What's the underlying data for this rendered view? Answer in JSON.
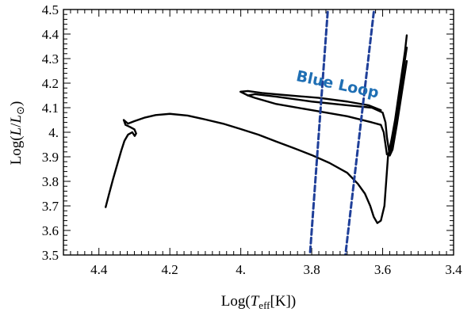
{
  "chart_data": {
    "type": "line",
    "xlim": [
      4.5,
      3.4
    ],
    "ylim": [
      3.5,
      4.5
    ],
    "x_ticks": [
      4.4,
      4.2,
      4.0,
      3.8,
      3.6,
      3.4
    ],
    "x_tick_labels": [
      "4.4",
      "4.2",
      "4.",
      "3.8",
      "3.6",
      "3.4"
    ],
    "y_ticks": [
      3.5,
      3.6,
      3.7,
      3.8,
      3.9,
      4.0,
      4.1,
      4.2,
      4.3,
      4.4,
      4.5
    ],
    "y_tick_labels": [
      "3.5",
      "3.6",
      "3.7",
      "3.8",
      "3.9",
      "4.",
      "4.1",
      "4.2",
      "4.3",
      "4.4",
      "4.5"
    ],
    "xlabel_parts": {
      "pre": "Log(",
      "var": "T",
      "sub": "eff",
      "post": "[K])"
    },
    "ylabel_parts": {
      "pre": "Log(",
      "var1": "L",
      "slash": "/",
      "var2": "L",
      "sub": "⊙",
      "post": ")"
    },
    "annotation": {
      "text": "Blue Loop",
      "x": 3.73,
      "y": 4.175,
      "rotation": 12,
      "color": "#1F6FB4"
    },
    "series": [
      {
        "style": "solid",
        "color": "#000000",
        "points": [
          [
            4.381,
            3.695
          ],
          [
            4.372,
            3.745
          ],
          [
            4.36,
            3.81
          ],
          [
            4.347,
            3.875
          ],
          [
            4.337,
            3.925
          ],
          [
            4.328,
            3.965
          ],
          [
            4.318,
            3.99
          ],
          [
            4.306,
            4.0
          ],
          [
            4.299,
            3.985
          ],
          [
            4.295,
            3.995
          ],
          [
            4.3,
            4.012
          ],
          [
            4.313,
            4.022
          ],
          [
            4.325,
            4.03
          ],
          [
            4.33,
            4.05
          ],
          [
            4.318,
            4.035
          ],
          [
            4.3,
            4.045
          ],
          [
            4.27,
            4.06
          ],
          [
            4.24,
            4.07
          ],
          [
            4.2,
            4.075
          ],
          [
            4.15,
            4.068
          ],
          [
            4.1,
            4.052
          ],
          [
            4.05,
            4.035
          ],
          [
            4.0,
            4.013
          ],
          [
            3.95,
            3.99
          ],
          [
            3.9,
            3.962
          ],
          [
            3.85,
            3.935
          ],
          [
            3.8,
            3.907
          ],
          [
            3.75,
            3.875
          ],
          [
            3.7,
            3.835
          ],
          [
            3.67,
            3.79
          ],
          [
            3.65,
            3.75
          ],
          [
            3.635,
            3.7
          ],
          [
            3.625,
            3.655
          ],
          [
            3.615,
            3.63
          ],
          [
            3.605,
            3.64
          ],
          [
            3.595,
            3.7
          ],
          [
            3.59,
            3.8
          ],
          [
            3.585,
            3.9
          ],
          [
            3.575,
            3.97
          ],
          [
            3.565,
            4.05
          ],
          [
            3.555,
            4.15
          ],
          [
            3.545,
            4.25
          ],
          [
            3.537,
            4.33
          ],
          [
            3.532,
            4.395
          ]
        ]
      },
      {
        "style": "solid",
        "color": "#000000",
        "points": [
          [
            3.532,
            4.345
          ],
          [
            3.545,
            4.22
          ],
          [
            3.56,
            4.08
          ],
          [
            3.572,
            3.96
          ],
          [
            3.58,
            3.905
          ],
          [
            3.588,
            3.91
          ],
          [
            3.592,
            3.95
          ],
          [
            3.597,
            4.0
          ],
          [
            3.605,
            4.03
          ],
          [
            3.63,
            4.04
          ],
          [
            3.7,
            4.065
          ],
          [
            3.8,
            4.09
          ],
          [
            3.9,
            4.115
          ],
          [
            3.96,
            4.14
          ],
          [
            3.98,
            4.15
          ],
          [
            3.96,
            4.155
          ],
          [
            3.9,
            4.145
          ],
          [
            3.8,
            4.125
          ],
          [
            3.7,
            4.11
          ],
          [
            3.63,
            4.1
          ],
          [
            3.6,
            4.08
          ],
          [
            3.592,
            4.04
          ],
          [
            3.588,
            3.98
          ],
          [
            3.58,
            3.905
          ],
          [
            3.572,
            3.93
          ],
          [
            3.56,
            4.03
          ],
          [
            3.545,
            4.17
          ],
          [
            3.532,
            4.29
          ]
        ]
      },
      {
        "style": "solid",
        "color": "#000000",
        "points": [
          [
            3.98,
            4.15
          ],
          [
            4.001,
            4.165
          ],
          [
            3.98,
            4.168
          ],
          [
            3.94,
            4.16
          ],
          [
            3.88,
            4.152
          ],
          [
            3.78,
            4.14
          ],
          [
            3.7,
            4.125
          ],
          [
            3.64,
            4.11
          ],
          [
            3.605,
            4.09
          ]
        ]
      },
      {
        "style": "dashed",
        "color": "#1F3F99",
        "points": [
          [
            3.755,
            4.49
          ],
          [
            3.805,
            3.5
          ]
        ]
      },
      {
        "style": "dashed",
        "color": "#1F3F99",
        "points": [
          [
            3.625,
            4.49
          ],
          [
            3.705,
            3.5
          ]
        ]
      }
    ]
  }
}
